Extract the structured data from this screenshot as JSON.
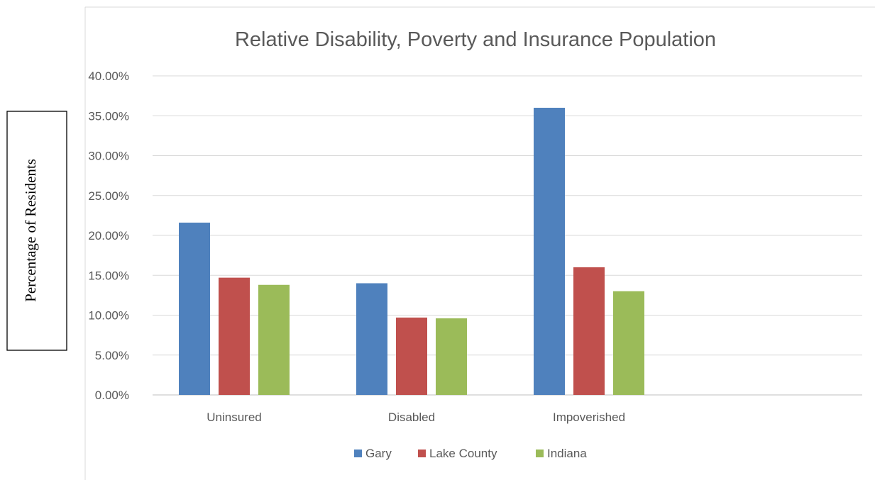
{
  "chart_data": {
    "type": "bar",
    "title": "Relative Disability, Poverty and Insurance Population",
    "xlabel": "",
    "ylabel": "Percentage of Residents",
    "categories": [
      "Uninsured",
      "Disabled",
      "Impoverished"
    ],
    "series": [
      {
        "name": "Gary",
        "color": "#4F81BD",
        "values": [
          21.6,
          14.0,
          36.0
        ]
      },
      {
        "name": "Lake County",
        "color": "#C0504D",
        "values": [
          14.7,
          9.7,
          16.0
        ]
      },
      {
        "name": "Indiana",
        "color": "#9BBB59",
        "values": [
          13.8,
          9.6,
          13.0
        ]
      }
    ],
    "ylim": [
      0,
      40
    ],
    "yticks": [
      0,
      5,
      10,
      15,
      20,
      25,
      30,
      35,
      40
    ],
    "ytick_labels": [
      "0.00%",
      "5.00%",
      "10.00%",
      "15.00%",
      "20.00%",
      "25.00%",
      "30.00%",
      "35.00%",
      "40.00%"
    ],
    "grid": true,
    "legend_position": "bottom"
  }
}
